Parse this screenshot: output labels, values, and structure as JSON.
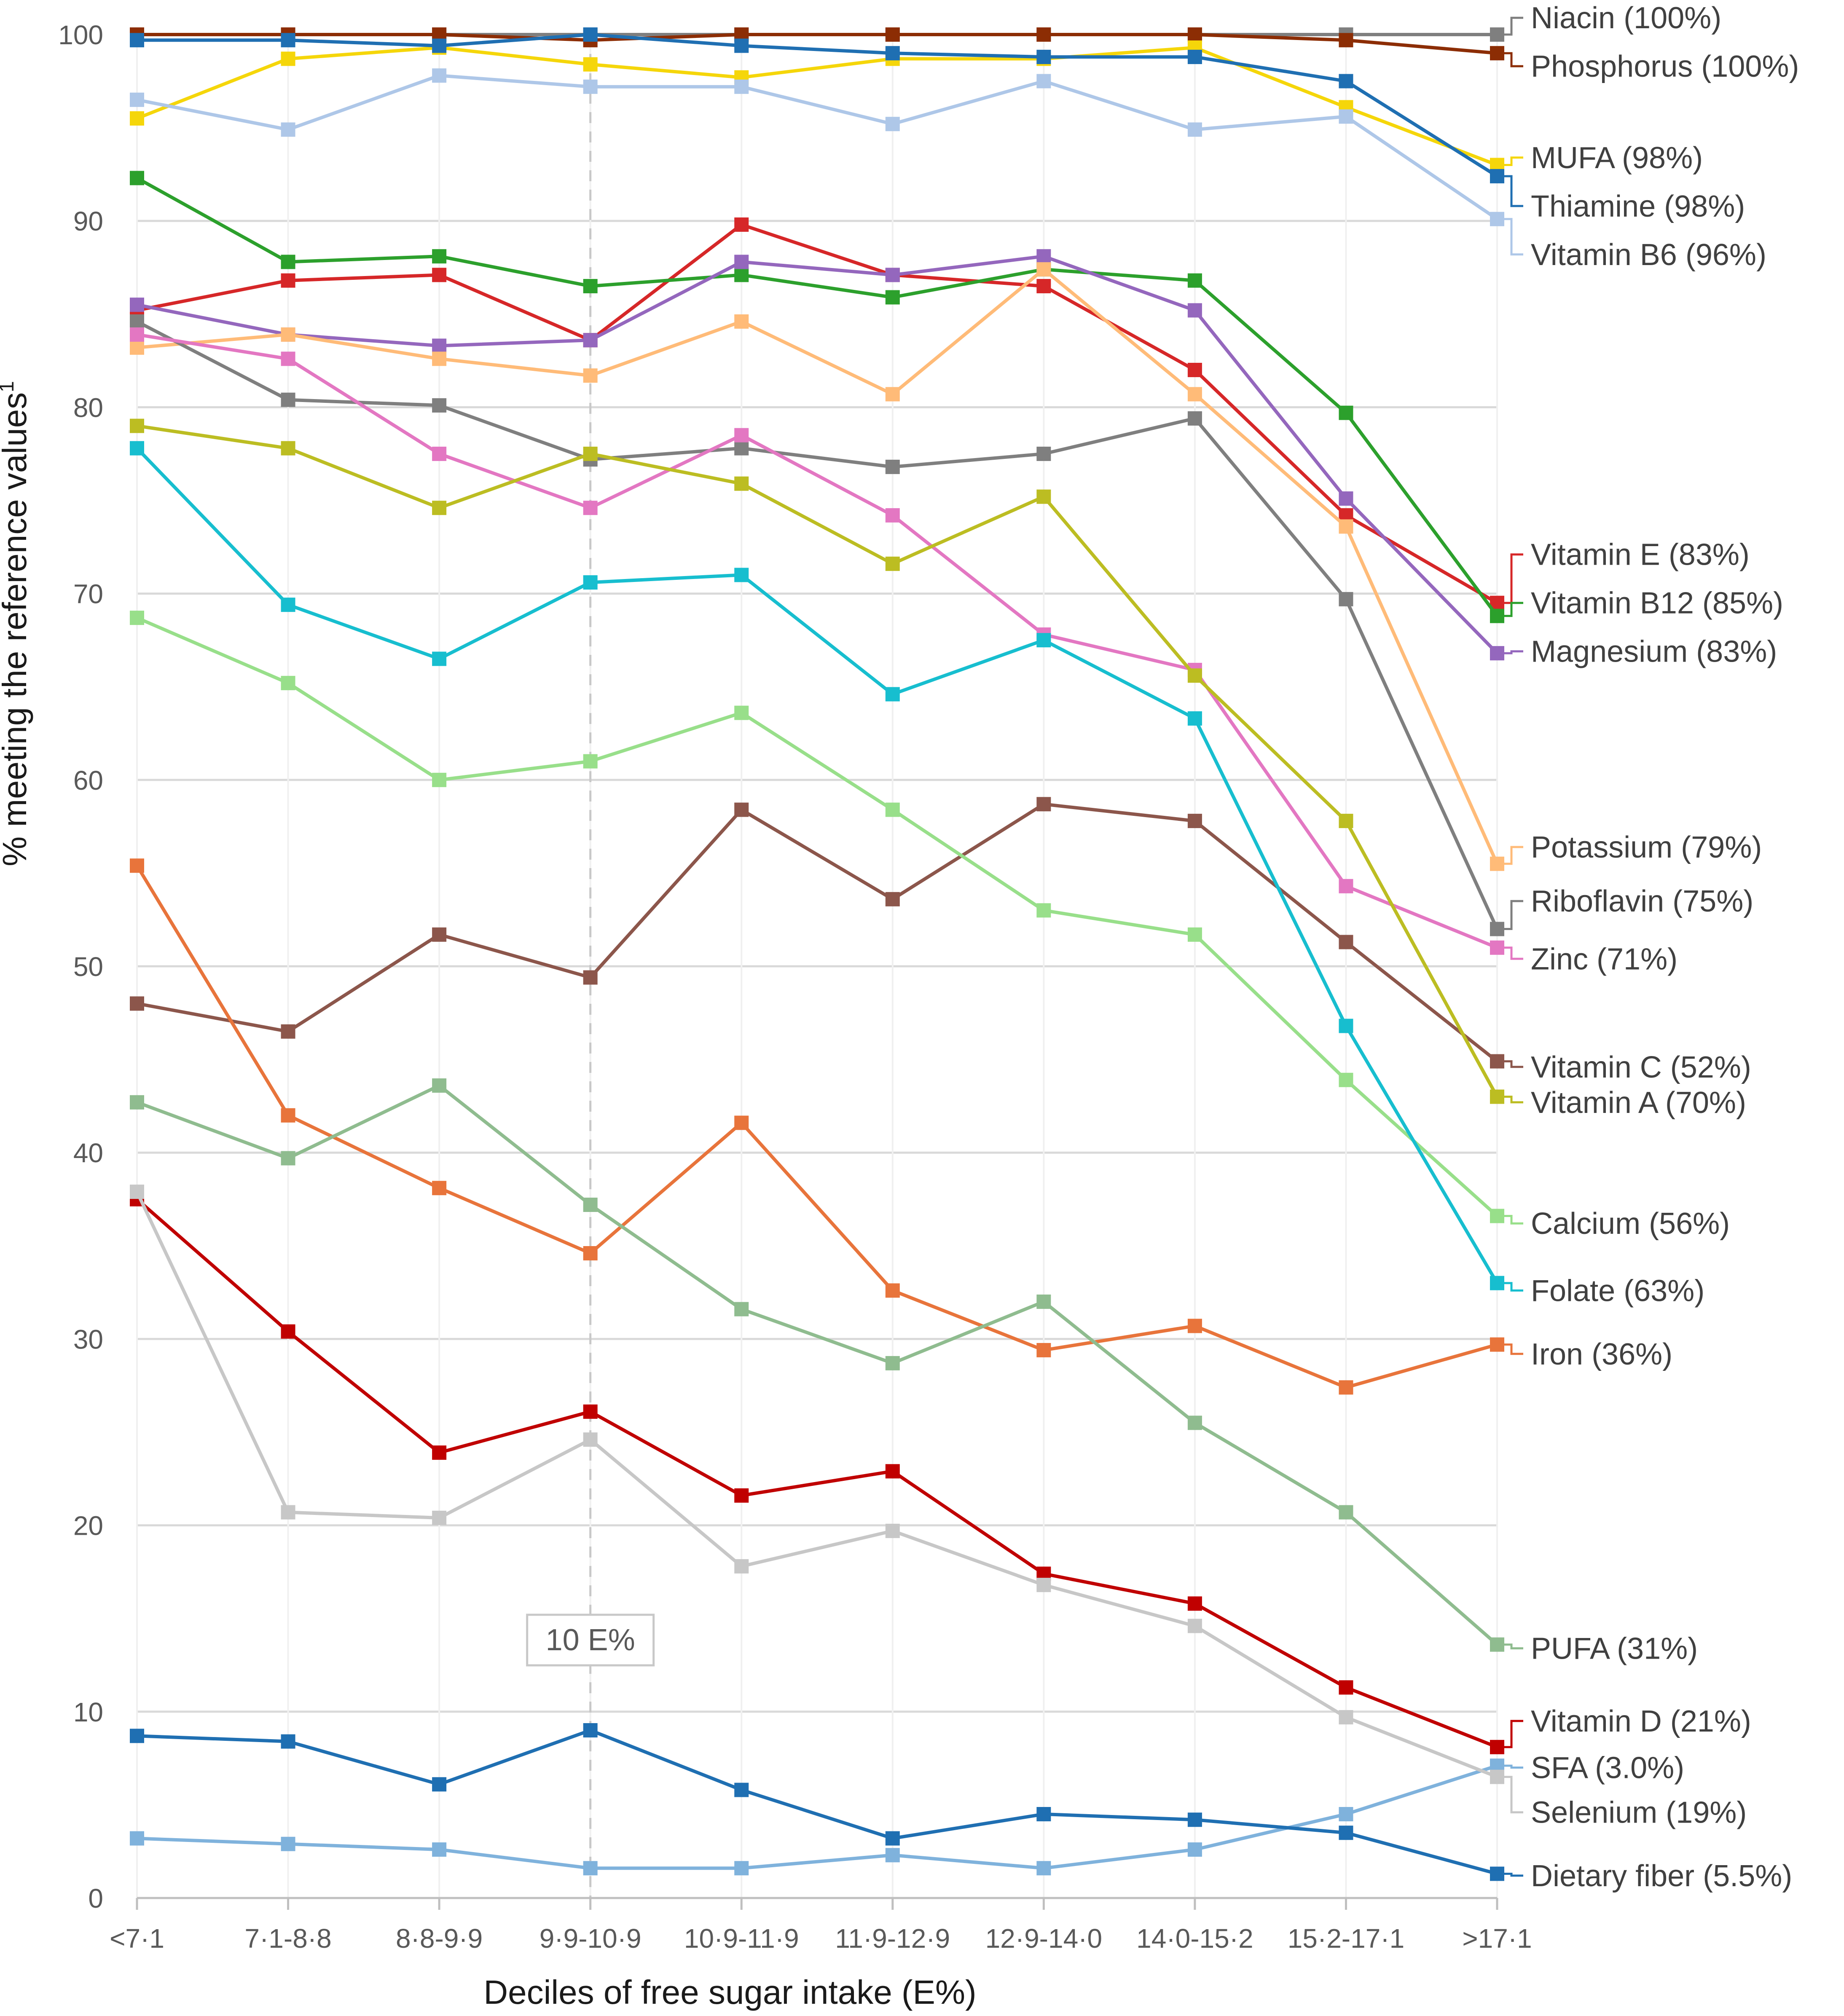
{
  "chart_data": {
    "type": "line",
    "title": "",
    "xlabel": "Deciles of free sugar intake (E%)",
    "ylabel": "% meeting the reference values",
    "ylabel_superscript": "1",
    "ylim": [
      0,
      100
    ],
    "yticks": [
      0,
      10,
      20,
      30,
      40,
      50,
      60,
      70,
      80,
      90,
      100
    ],
    "grid": "horizontal",
    "legend": "direct labels at right",
    "categories": [
      "<7·1",
      "7·1-8·8",
      "8·8-9·9",
      "9·9-10·9",
      "10·9-11·9",
      "11·9-12·9",
      "12·9-14·0",
      "14·0-15·2",
      "15·2-17·1",
      ">17·1"
    ],
    "reference_line": {
      "category_index": 3,
      "label": "10 E%"
    },
    "series": [
      {
        "name": "Niacin (100%)",
        "color": "#7f7f7f",
        "values": [
          100,
          100,
          100,
          100,
          100,
          100,
          100,
          100,
          100,
          100
        ]
      },
      {
        "name": "Phosphorus (100%)",
        "color": "#8c2d04",
        "values": [
          100,
          100,
          100,
          99.7,
          100,
          100,
          100,
          100,
          99.7,
          99.0
        ]
      },
      {
        "name": "MUFA (98%)",
        "color": "#f5d60a",
        "values": [
          95.5,
          98.7,
          99.3,
          98.4,
          97.7,
          98.7,
          98.7,
          99.3,
          96.1,
          93.0
        ]
      },
      {
        "name": "Thiamine (98%)",
        "color": "#1f6fb2",
        "values": [
          99.7,
          99.7,
          99.4,
          100,
          99.4,
          99.0,
          98.8,
          98.8,
          97.5,
          92.4
        ]
      },
      {
        "name": "Vitamin B6 (96%)",
        "color": "#aec7e8",
        "values": [
          96.5,
          94.9,
          97.8,
          97.2,
          97.2,
          95.2,
          97.5,
          94.9,
          95.6,
          90.1
        ]
      },
      {
        "name": "Vitamin E (83%)",
        "color": "#d62728",
        "values": [
          85.2,
          86.8,
          87.1,
          83.6,
          89.8,
          87.1,
          86.5,
          82.0,
          74.2,
          69.5
        ]
      },
      {
        "name": "Vitamin B12 (85%)",
        "color": "#2ca02c",
        "values": [
          92.3,
          87.8,
          88.1,
          86.5,
          87.1,
          85.9,
          87.4,
          86.8,
          79.7,
          68.8
        ]
      },
      {
        "name": "Magnesium (83%)",
        "color": "#9467bd",
        "values": [
          85.5,
          83.9,
          83.3,
          83.6,
          87.8,
          87.1,
          88.1,
          85.2,
          75.1,
          66.8
        ]
      },
      {
        "name": "Potassium (79%)",
        "color": "#ffbb78",
        "values": [
          83.2,
          83.9,
          82.6,
          81.7,
          84.6,
          80.7,
          87.4,
          80.7,
          73.6,
          55.5
        ]
      },
      {
        "name": "Riboflavin (75%)",
        "color": "#7f7f7f",
        "values": [
          84.6,
          80.4,
          80.1,
          77.2,
          77.8,
          76.8,
          77.5,
          79.4,
          69.7,
          52.0
        ]
      },
      {
        "name": "Zinc (71%)",
        "color": "#e377c2",
        "values": [
          83.9,
          82.6,
          77.5,
          74.6,
          78.5,
          74.2,
          67.8,
          65.9,
          54.3,
          51.0
        ]
      },
      {
        "name": "Vitamin C (52%)",
        "color": "#8c564b",
        "values": [
          48.0,
          46.5,
          51.7,
          49.4,
          58.4,
          53.6,
          58.7,
          57.8,
          51.3,
          44.9
        ]
      },
      {
        "name": "Vitamin A (70%)",
        "color": "#bcbd22",
        "values": [
          79.0,
          77.8,
          74.6,
          77.5,
          75.9,
          71.6,
          75.2,
          65.6,
          57.8,
          43.0
        ]
      },
      {
        "name": "Calcium (56%)",
        "color": "#98df8a",
        "values": [
          68.7,
          65.2,
          60.0,
          61.0,
          63.6,
          58.4,
          53.0,
          51.7,
          43.9,
          36.6
        ]
      },
      {
        "name": "Folate (63%)",
        "color": "#17becf",
        "values": [
          77.8,
          69.4,
          66.5,
          70.6,
          71.0,
          64.6,
          67.5,
          63.3,
          46.8,
          33.0
        ]
      },
      {
        "name": "Iron (36%)",
        "color": "#e8743b",
        "values": [
          55.4,
          42.0,
          38.1,
          34.6,
          41.6,
          32.6,
          29.4,
          30.7,
          27.4,
          29.7
        ]
      },
      {
        "name": "PUFA (31%)",
        "color": "#8fbc8f",
        "values": [
          42.7,
          39.7,
          43.6,
          37.2,
          31.6,
          28.7,
          32.0,
          25.5,
          20.7,
          13.6
        ]
      },
      {
        "name": "Vitamin D (21%)",
        "color": "#c00000",
        "values": [
          37.5,
          30.4,
          23.9,
          26.1,
          21.6,
          22.9,
          17.4,
          15.8,
          11.3,
          8.1
        ]
      },
      {
        "name": "SFA (3.0%)",
        "color": "#7fb2dc",
        "values": [
          3.2,
          2.9,
          2.6,
          1.6,
          1.6,
          2.3,
          1.6,
          2.6,
          4.5,
          7.1
        ]
      },
      {
        "name": "Selenium (19%)",
        "color": "#c7c7c7",
        "values": [
          37.9,
          20.7,
          20.4,
          24.6,
          17.8,
          19.7,
          16.8,
          14.6,
          9.7,
          6.5
        ]
      },
      {
        "name": "Dietary fiber (5.5%)",
        "color": "#1f6fb2",
        "values": [
          8.7,
          8.4,
          6.1,
          9.0,
          5.8,
          3.2,
          4.5,
          4.2,
          3.5,
          1.3
        ]
      }
    ],
    "label_positions_y": [
      100.9,
      98.3,
      93.4,
      90.8,
      88.2,
      72.1,
      69.5,
      66.9,
      56.4,
      53.5,
      50.4,
      44.6,
      42.7,
      36.2,
      32.6,
      29.2,
      13.4,
      9.5,
      7.0,
      4.6,
      1.2
    ]
  }
}
